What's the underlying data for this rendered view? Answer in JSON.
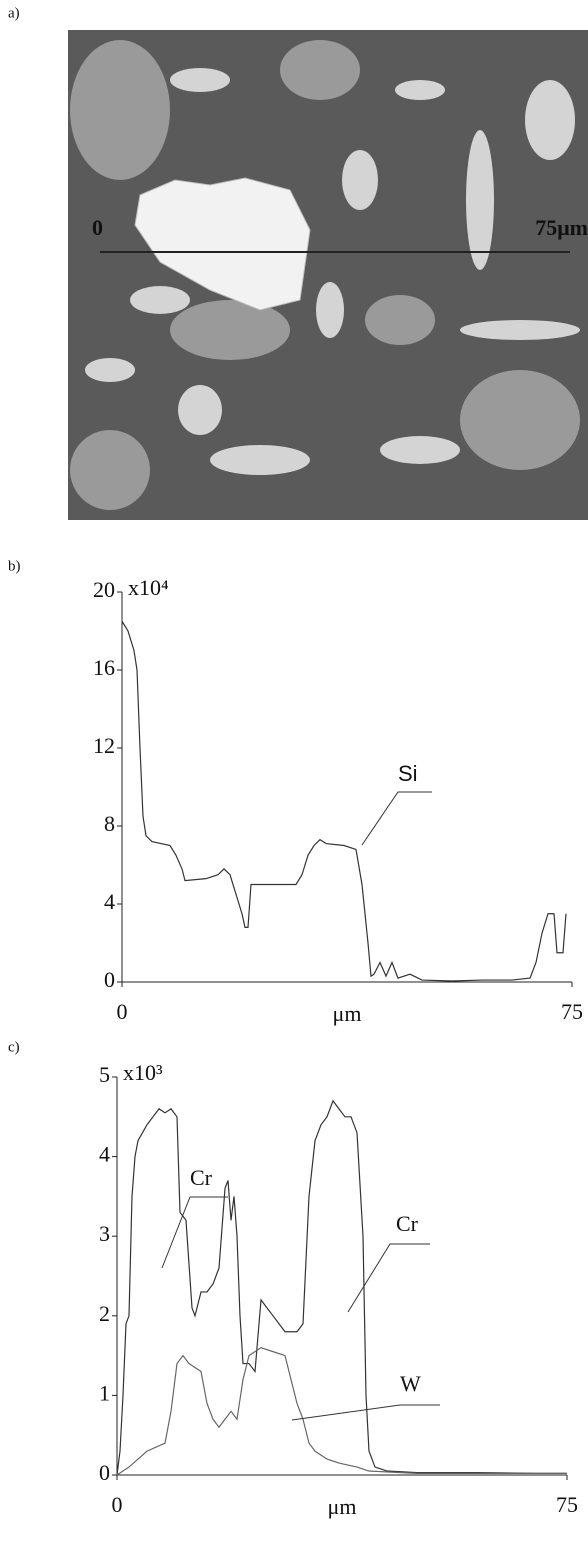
{
  "panels": {
    "a": "a)",
    "b": "b)",
    "c": "c)"
  },
  "micrograph": {
    "scale_start": "0",
    "scale_end": "75μm"
  },
  "chart_data": [
    {
      "type": "line",
      "y_multiplier": "x10⁴",
      "xlabel": "μm",
      "xlim": [
        0,
        75
      ],
      "xticks": [
        0,
        75
      ],
      "ylim": [
        0,
        20
      ],
      "yticks": [
        0,
        4,
        8,
        12,
        16,
        20
      ],
      "grid": false,
      "series": [
        {
          "name": "Si",
          "color": "#333333",
          "x": [
            0,
            1,
            2,
            2.5,
            3,
            3.5,
            4,
            5,
            8,
            9,
            10,
            10.5,
            14,
            16,
            17,
            18,
            19,
            20,
            20.5,
            21,
            21.5,
            24,
            29,
            30,
            31,
            32,
            33,
            34,
            37,
            39,
            40,
            41,
            41.5,
            42,
            43,
            44,
            45,
            46,
            48,
            50,
            55,
            60,
            65,
            68,
            69,
            70,
            71,
            72,
            72.5,
            73.5,
            74
          ],
          "values": [
            18.5,
            18,
            17,
            16,
            12,
            8.5,
            7.5,
            7.2,
            7,
            6.5,
            5.8,
            5.2,
            5.3,
            5.5,
            5.8,
            5.5,
            4.5,
            3.5,
            2.8,
            2.8,
            5,
            5,
            5,
            5.5,
            6.5,
            7,
            7.3,
            7.1,
            7,
            6.8,
            5,
            2,
            0.3,
            0.4,
            1,
            0.3,
            1,
            0.2,
            0.4,
            0.1,
            0.05,
            0.1,
            0.1,
            0.2,
            1,
            2.5,
            3.5,
            3.5,
            1.5,
            1.5,
            3.5
          ]
        }
      ]
    },
    {
      "type": "line",
      "y_multiplier": "x10³",
      "xlabel": "μm",
      "xlim": [
        0,
        75
      ],
      "xticks": [
        0,
        75
      ],
      "ylim": [
        0,
        5
      ],
      "yticks": [
        0,
        1,
        2,
        3,
        4,
        5
      ],
      "grid": false,
      "series": [
        {
          "name": "Cr",
          "color": "#333333",
          "x": [
            0,
            0.5,
            1,
            1.5,
            2,
            2.5,
            3,
            3.5,
            5,
            6,
            7,
            8,
            9,
            10,
            10.5,
            11.5,
            12.5,
            13,
            14,
            15,
            16,
            17,
            18,
            18.5,
            19,
            19.5,
            20,
            20.5,
            21,
            22,
            23,
            24,
            25,
            26,
            27,
            28,
            30,
            31,
            32,
            33,
            34,
            35,
            36,
            37,
            38,
            39,
            40,
            41,
            41.5,
            42,
            43,
            45,
            50,
            60,
            70,
            75
          ],
          "values": [
            0,
            0.3,
            1,
            1.9,
            2,
            3.5,
            4,
            4.2,
            4.4,
            4.5,
            4.6,
            4.55,
            4.6,
            4.5,
            3.3,
            3.2,
            2.1,
            2,
            2.3,
            2.3,
            2.4,
            2.6,
            3.6,
            3.7,
            3.2,
            3.5,
            3,
            2,
            1.4,
            1.4,
            1.3,
            2.2,
            2.1,
            2,
            1.9,
            1.8,
            1.8,
            1.9,
            3.5,
            4.2,
            4.4,
            4.5,
            4.7,
            4.6,
            4.5,
            4.5,
            4.3,
            3,
            1,
            0.3,
            0.1,
            0.05,
            0.03,
            0.03,
            0.02,
            0.02
          ]
        },
        {
          "name": "W",
          "color": "#666666",
          "x": [
            0,
            2,
            5,
            8,
            9,
            10,
            11,
            12,
            14,
            15,
            16,
            17,
            18,
            19,
            20,
            21,
            22,
            24,
            26,
            28,
            29,
            30,
            31,
            32,
            33,
            35,
            37,
            40,
            42,
            50,
            75
          ],
          "values": [
            0,
            0.1,
            0.3,
            0.4,
            0.8,
            1.4,
            1.5,
            1.4,
            1.3,
            0.9,
            0.7,
            0.6,
            0.7,
            0.8,
            0.7,
            1.2,
            1.5,
            1.6,
            1.55,
            1.5,
            1.2,
            0.9,
            0.7,
            0.4,
            0.3,
            0.2,
            0.15,
            0.1,
            0.05,
            0.02,
            0.02
          ]
        }
      ]
    }
  ]
}
